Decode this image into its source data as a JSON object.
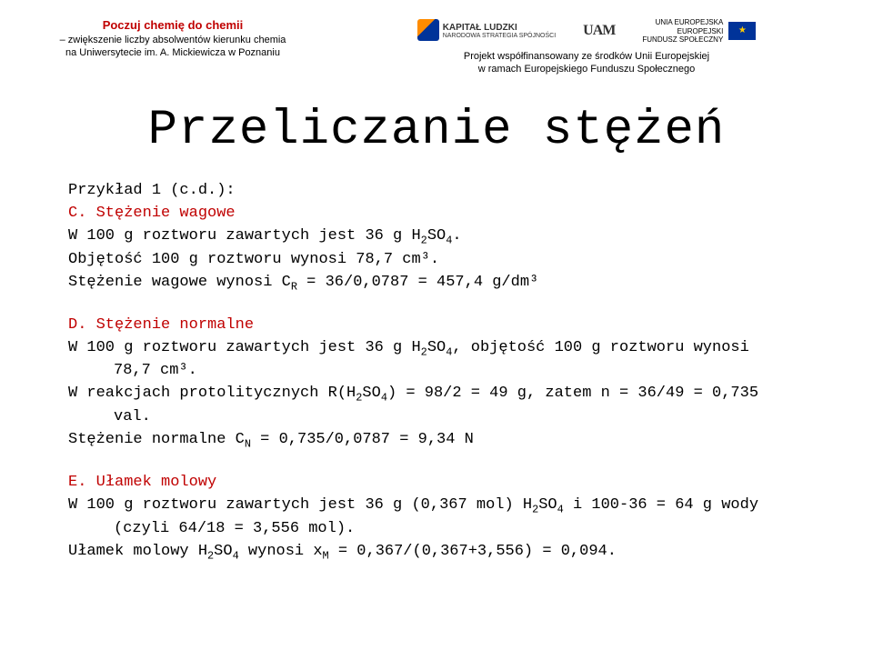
{
  "header": {
    "project_title": "Poczuj chemię do chemii",
    "project_sub1": "– zwiększenie liczby absolwentów kierunku chemia",
    "project_sub2": "na Uniwersytecie im. A. Mickiewicza w Poznaniu",
    "kapital_line1": "KAPITAŁ LUDZKI",
    "kapital_line2": "NARODOWA STRATEGIA SPÓJNOŚCI",
    "uam_mark": "UAM",
    "eu_line1": "UNIA EUROPEJSKA",
    "eu_line2": "EUROPEJSKI",
    "eu_line3": "FUNDUSZ SPOŁECZNY",
    "funding1": "Projekt współfinansowany ze środków Unii Europejskiej",
    "funding2": "w ramach Europejskiego Funduszu Społecznego"
  },
  "title": "Przeliczanie stężeń",
  "body": {
    "ex_label": "Przykład 1 (c.d.):",
    "c_head": "C. Stężenie wagowe",
    "c_l1a": "W 100 g roztworu zawartych jest 36 g H",
    "c_l1b": "SO",
    "c_l1c": ".",
    "c_l2": "Objętość 100 g roztworu wynosi 78,7 cm³.",
    "c_l3a": "Stężenie wagowe wynosi C",
    "c_l3b": " = 36/0,0787 = 457,4 g/dm³",
    "d_head": "D. Stężenie normalne",
    "d_l1a": "W 100 g roztworu zawartych jest 36 g H",
    "d_l1b": "SO",
    "d_l1c": ", objętość 100 g roztworu wynosi",
    "d_l1d": "78,7 cm³.",
    "d_l2a": "W reakcjach protolitycznych R(H",
    "d_l2b": "SO",
    "d_l2c": ") = 98/2 = 49 g, zatem n = 36/49 = 0,735",
    "d_l2d": "val.",
    "d_l3a": "Stężenie normalne C",
    "d_l3b": " = 0,735/0,0787 = 9,34 N",
    "e_head": "E. Ułamek molowy",
    "e_l1a": "W 100 g roztworu zawartych jest 36 g (0,367 mol) H",
    "e_l1b": "SO",
    "e_l1c": " i 100-36 = 64 g wody",
    "e_l1d": "(czyli 64/18 = 3,556 mol).",
    "e_l2a": "Ułamek molowy H",
    "e_l2b": "SO",
    "e_l2c": " wynosi x",
    "e_l2d": " = 0,367/(0,367+3,556) = 0,094.",
    "sub2": "2",
    "sub4": "4",
    "subR": "R",
    "subN": "N",
    "subM": "M"
  },
  "colors": {
    "red": "#c00000",
    "text": "#000000",
    "background": "#ffffff"
  },
  "typography": {
    "title_fontsize": 54,
    "body_fontsize": 17,
    "header_title_fontsize": 13,
    "header_sub_fontsize": 11,
    "font_family_body": "Courier New",
    "font_family_header": "Arial"
  }
}
